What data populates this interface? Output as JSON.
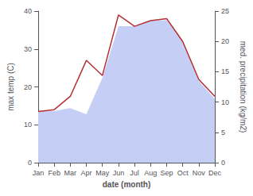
{
  "chart_data": {
    "type": "line",
    "xlabel": "date (month)",
    "ylabel": "max temp (C)",
    "y2label": "med. precipitation (kg/m2)",
    "categories": [
      "Jan",
      "Feb",
      "Mar",
      "Apr",
      "May",
      "Jun",
      "Jul",
      "Aug",
      "Sep",
      "Oct",
      "Nov",
      "Dec"
    ],
    "series": [
      {
        "type": "area",
        "axis": "y2",
        "color": "#c5cef5",
        "values": [
          8.5,
          8.5,
          9.0,
          8.0,
          14.0,
          22.5,
          22.5,
          23.5,
          23.5,
          20.0,
          13.5,
          10.5
        ]
      },
      {
        "type": "line",
        "color": "#b53030",
        "values": [
          13.5,
          14.0,
          17.5,
          27.0,
          23.0,
          39.0,
          36.0,
          37.5,
          38.0,
          32.0,
          22.0,
          17.5
        ]
      }
    ],
    "ylim": [
      0,
      40
    ],
    "yticks": [
      0,
      10,
      20,
      30,
      40
    ],
    "y2lim": [
      0,
      25
    ],
    "y2ticks": [
      0,
      5,
      10,
      15,
      20,
      25
    ],
    "grid": false
  }
}
